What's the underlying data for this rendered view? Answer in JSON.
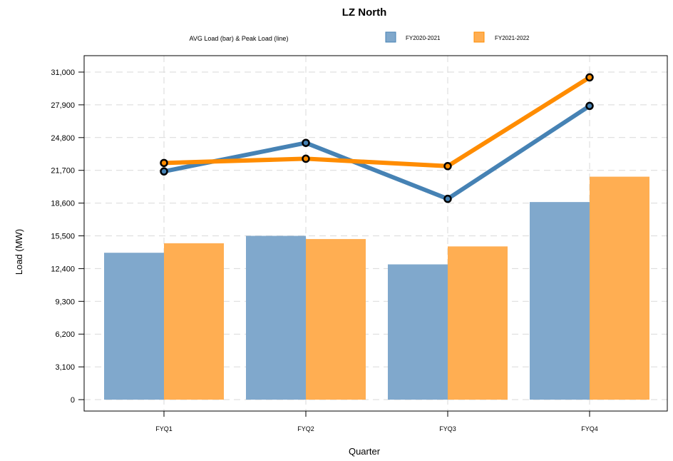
{
  "chart_data": {
    "type": "bar",
    "title": "LZ North",
    "subtitle": "AVG Load (bar) & Peak Load (line)",
    "xlabel": "Quarter",
    "ylabel": "Load (MW)",
    "ylim": [
      0,
      31000
    ],
    "yticks": [
      0,
      3100,
      6200,
      9300,
      12400,
      15500,
      18600,
      21700,
      24800,
      27900,
      31000
    ],
    "ytick_labels": [
      "0",
      "3,100",
      "6,200",
      "9,300",
      "12,400",
      "15,500",
      "18,600",
      "21,700",
      "24,800",
      "27,900",
      "31,000"
    ],
    "categories": [
      "FYQ1",
      "FYQ2",
      "FYQ3",
      "FYQ4"
    ],
    "grid": true,
    "legend_position": "top",
    "series": [
      {
        "name": "FY2020-2021",
        "bar_color": "#80a8cc",
        "line_color": "#4682b4",
        "avg_values": [
          13900,
          15500,
          12800,
          18700
        ],
        "peak_values": [
          21600,
          24300,
          19000,
          27800
        ]
      },
      {
        "name": "FY2021-2022",
        "bar_color": "#ffae52",
        "line_color": "#ff8c00",
        "avg_values": [
          14800,
          15200,
          14500,
          21100
        ],
        "peak_values": [
          22400,
          22800,
          22100,
          30500
        ]
      }
    ]
  }
}
